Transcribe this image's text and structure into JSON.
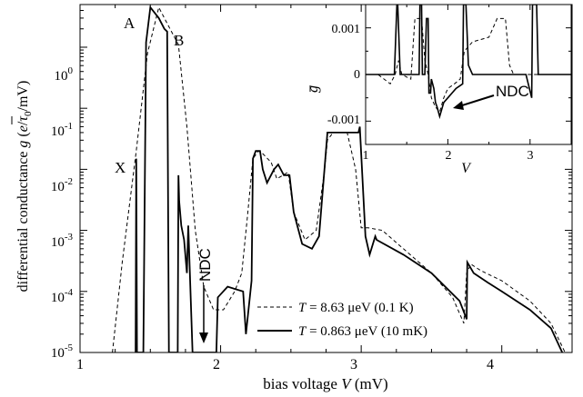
{
  "chart_data": [
    {
      "type": "line",
      "xlabel": "bias voltage V (mV)",
      "ylabel": "differential conductance g (e/τ0/mV)",
      "yscale": "log",
      "xlim": [
        1,
        4.5
      ],
      "ylim": [
        1e-05,
        5
      ],
      "xticks": [
        "1",
        "2",
        "3",
        "4"
      ],
      "yticks": [
        "10^-5",
        "10^-4",
        "10^-3",
        "10^-2",
        "10^-1",
        "10^0"
      ],
      "legend_position": "bottom-right",
      "series": [
        {
          "name": "T = 8.63 μeV (0.1 K)",
          "style": "dashed",
          "x": [
            1.23,
            1.3,
            1.4,
            1.48,
            1.56,
            1.6,
            1.64,
            1.7,
            1.76,
            1.82,
            1.88,
            1.95,
            2.02,
            2.1,
            2.15,
            2.19,
            2.23,
            2.27,
            2.3,
            2.36,
            2.4,
            2.48,
            2.52,
            2.6,
            2.68,
            2.74,
            2.76,
            2.8,
            2.85,
            2.9,
            2.96,
            3.0,
            3.05,
            3.15,
            3.3,
            3.5,
            3.65,
            3.73,
            3.75,
            3.78,
            3.85,
            4.0,
            4.2,
            4.35,
            4.45
          ],
          "y": [
            1e-05,
            0.0003,
            0.02,
            0.8,
            4.5,
            3.0,
            2.0,
            1.1,
            0.05,
            0.001,
            0.00012,
            5e-05,
            5e-05,
            0.0001,
            0.0002,
            0.0016,
            0.015,
            0.02,
            0.018,
            0.013,
            0.007,
            0.009,
            0.002,
            0.0007,
            0.001,
            0.01,
            0.03,
            0.04,
            0.04,
            0.04,
            0.01,
            0.0011,
            0.0011,
            0.001,
            0.0005,
            0.0002,
            8e-05,
            3e-05,
            0.0002,
            0.00028,
            0.00022,
            0.00015,
            7e-05,
            3e-05,
            1e-05
          ]
        },
        {
          "name": "T = 0.863 μeV (10 mK)",
          "style": "solid",
          "x": [
            1.395,
            1.4,
            1.405,
            1.45,
            1.47,
            1.5,
            1.56,
            1.6,
            1.62,
            1.632,
            1.695,
            1.7,
            1.705,
            1.72,
            1.74,
            1.76,
            1.77,
            1.8,
            1.86,
            1.87,
            1.97,
            1.98,
            2.05,
            2.1,
            2.16,
            2.18,
            2.22,
            2.23,
            2.25,
            2.28,
            2.3,
            2.33,
            2.38,
            2.41,
            2.45,
            2.49,
            2.52,
            2.58,
            2.65,
            2.7,
            2.76,
            2.78,
            2.82,
            2.88,
            2.94,
            2.98,
            2.99,
            3.03,
            3.06,
            3.1,
            3.11,
            3.3,
            3.5,
            3.7,
            3.75,
            3.755,
            3.8,
            3.9,
            4.0,
            4.2,
            4.35,
            4.43
          ],
          "y": [
            1e-05,
            0.015,
            1e-05,
            1e-05,
            1.2,
            4.5,
            3.0,
            2.0,
            1.8,
            1e-05,
            1e-05,
            0.008,
            0.003,
            0.0012,
            0.0007,
            0.0002,
            0.0012,
            1e-05,
            1e-05,
            1e-05,
            1e-05,
            8e-05,
            0.00012,
            0.00011,
            0.0001,
            2e-05,
            0.00015,
            0.015,
            0.02,
            0.02,
            0.01,
            0.006,
            0.01,
            0.012,
            0.008,
            0.008,
            0.002,
            0.0006,
            0.0005,
            0.0008,
            0.04,
            0.04,
            0.04,
            0.04,
            0.04,
            0.04,
            0.05,
            0.0008,
            0.0004,
            0.0008,
            0.0007,
            0.0004,
            0.0002,
            7e-05,
            3.5e-05,
            0.0003,
            0.0002,
            0.00014,
            0.0001,
            5e-05,
            2.5e-05,
            1e-05
          ]
        }
      ],
      "annotations": [
        "A",
        "B",
        "X",
        "NDC"
      ]
    },
    {
      "type": "line",
      "inset": true,
      "xlabel": "V",
      "ylabel": "g",
      "xlim": [
        1,
        3.5
      ],
      "ylim": [
        -0.0015,
        0.0015
      ],
      "xticks": [
        "1",
        "2",
        "3"
      ],
      "yticks": [
        "-0.001",
        "0",
        "0.001"
      ],
      "series": [
        {
          "style": "dashed",
          "x": [
            1.0,
            1.15,
            1.3,
            1.36,
            1.4,
            1.44,
            1.55,
            1.6,
            1.68,
            1.72,
            1.76,
            1.8,
            1.85,
            1.9,
            1.95,
            2.0,
            2.08,
            2.15,
            2.2,
            2.3,
            2.5,
            2.6,
            2.7,
            2.75,
            2.8,
            3.0,
            3.3,
            3.5
          ],
          "y": [
            0.0,
            0.0,
            -0.0002,
            0.0,
            0.0003,
            0.0,
            -0.0001,
            0.0012,
            0.0012,
            0.0003,
            0.0,
            -0.0005,
            -0.0007,
            -0.0008,
            -0.0005,
            -0.0003,
            -0.0002,
            -0.0001,
            0.0005,
            0.0007,
            0.0008,
            0.0012,
            0.0012,
            0.0002,
            0.0,
            0.0,
            0.0,
            0.0
          ]
        },
        {
          "style": "solid",
          "x": [
            1.0,
            1.35,
            1.38,
            1.39,
            1.42,
            1.45,
            1.65,
            1.66,
            1.68,
            1.69,
            1.72,
            1.74,
            1.76,
            1.77,
            1.79,
            1.8,
            1.83,
            1.85,
            1.87,
            1.9,
            1.95,
            2.0,
            2.1,
            2.18,
            2.19,
            2.22,
            2.25,
            2.3,
            2.4,
            2.5,
            2.55,
            2.6,
            2.75,
            2.95,
            3.02,
            3.03,
            3.08,
            3.1,
            3.35,
            3.5
          ],
          "y": [
            0.0,
            0.0,
            0.0015,
            0.0015,
            0.0,
            0.0,
            0.0,
            0.0015,
            0.0015,
            0.0,
            0.0,
            0.0012,
            0.0012,
            -0.0004,
            -0.0004,
            -0.0001,
            -0.0003,
            -0.0006,
            -0.0007,
            -0.0009,
            -0.0006,
            -0.0005,
            -0.0003,
            -0.0002,
            0.0015,
            0.0015,
            0.0002,
            0.0,
            0.0,
            0.0,
            0.0,
            0.0,
            0.0,
            0.0,
            -0.0005,
            0.0015,
            0.0015,
            0.0,
            0.0,
            0.0
          ]
        }
      ],
      "annotations": [
        "NDC"
      ]
    }
  ],
  "text": {
    "main_ylabel": {
      "prefix": "differential conductance ",
      "g": "g",
      "open": " (",
      "e": "e",
      "slash": "/",
      "tau": "τ",
      "tau_sub": "0",
      "unit": "/mV)"
    },
    "main_xlabel": {
      "prefix": "bias voltage ",
      "V": "V",
      "unit": " (mV)"
    },
    "main_xticks": [
      "1",
      "2",
      "3",
      "4"
    ],
    "main_yticks": [
      {
        "base": "10",
        "exp": "-5"
      },
      {
        "base": "10",
        "exp": "-4"
      },
      {
        "base": "10",
        "exp": "-3"
      },
      {
        "base": "10",
        "exp": "-2"
      },
      {
        "base": "10",
        "exp": "-1"
      },
      {
        "base": "10",
        "exp": "0"
      }
    ],
    "inset_xticks": [
      "1",
      "2",
      "3"
    ],
    "inset_yticks": [
      "-0.001",
      "0",
      "0.001"
    ],
    "inset_xlabel": "V",
    "inset_ylabel": "g",
    "labels": {
      "A": "A",
      "B": "B",
      "X": "X",
      "NDC_main": "NDC",
      "NDC_inset": "NDC"
    },
    "legend": [
      {
        "T": "T",
        "value": " = 8.63 μeV (0.1 K)"
      },
      {
        "T": "T",
        "value": " = 0.863 μeV (10 mK)"
      }
    ]
  }
}
